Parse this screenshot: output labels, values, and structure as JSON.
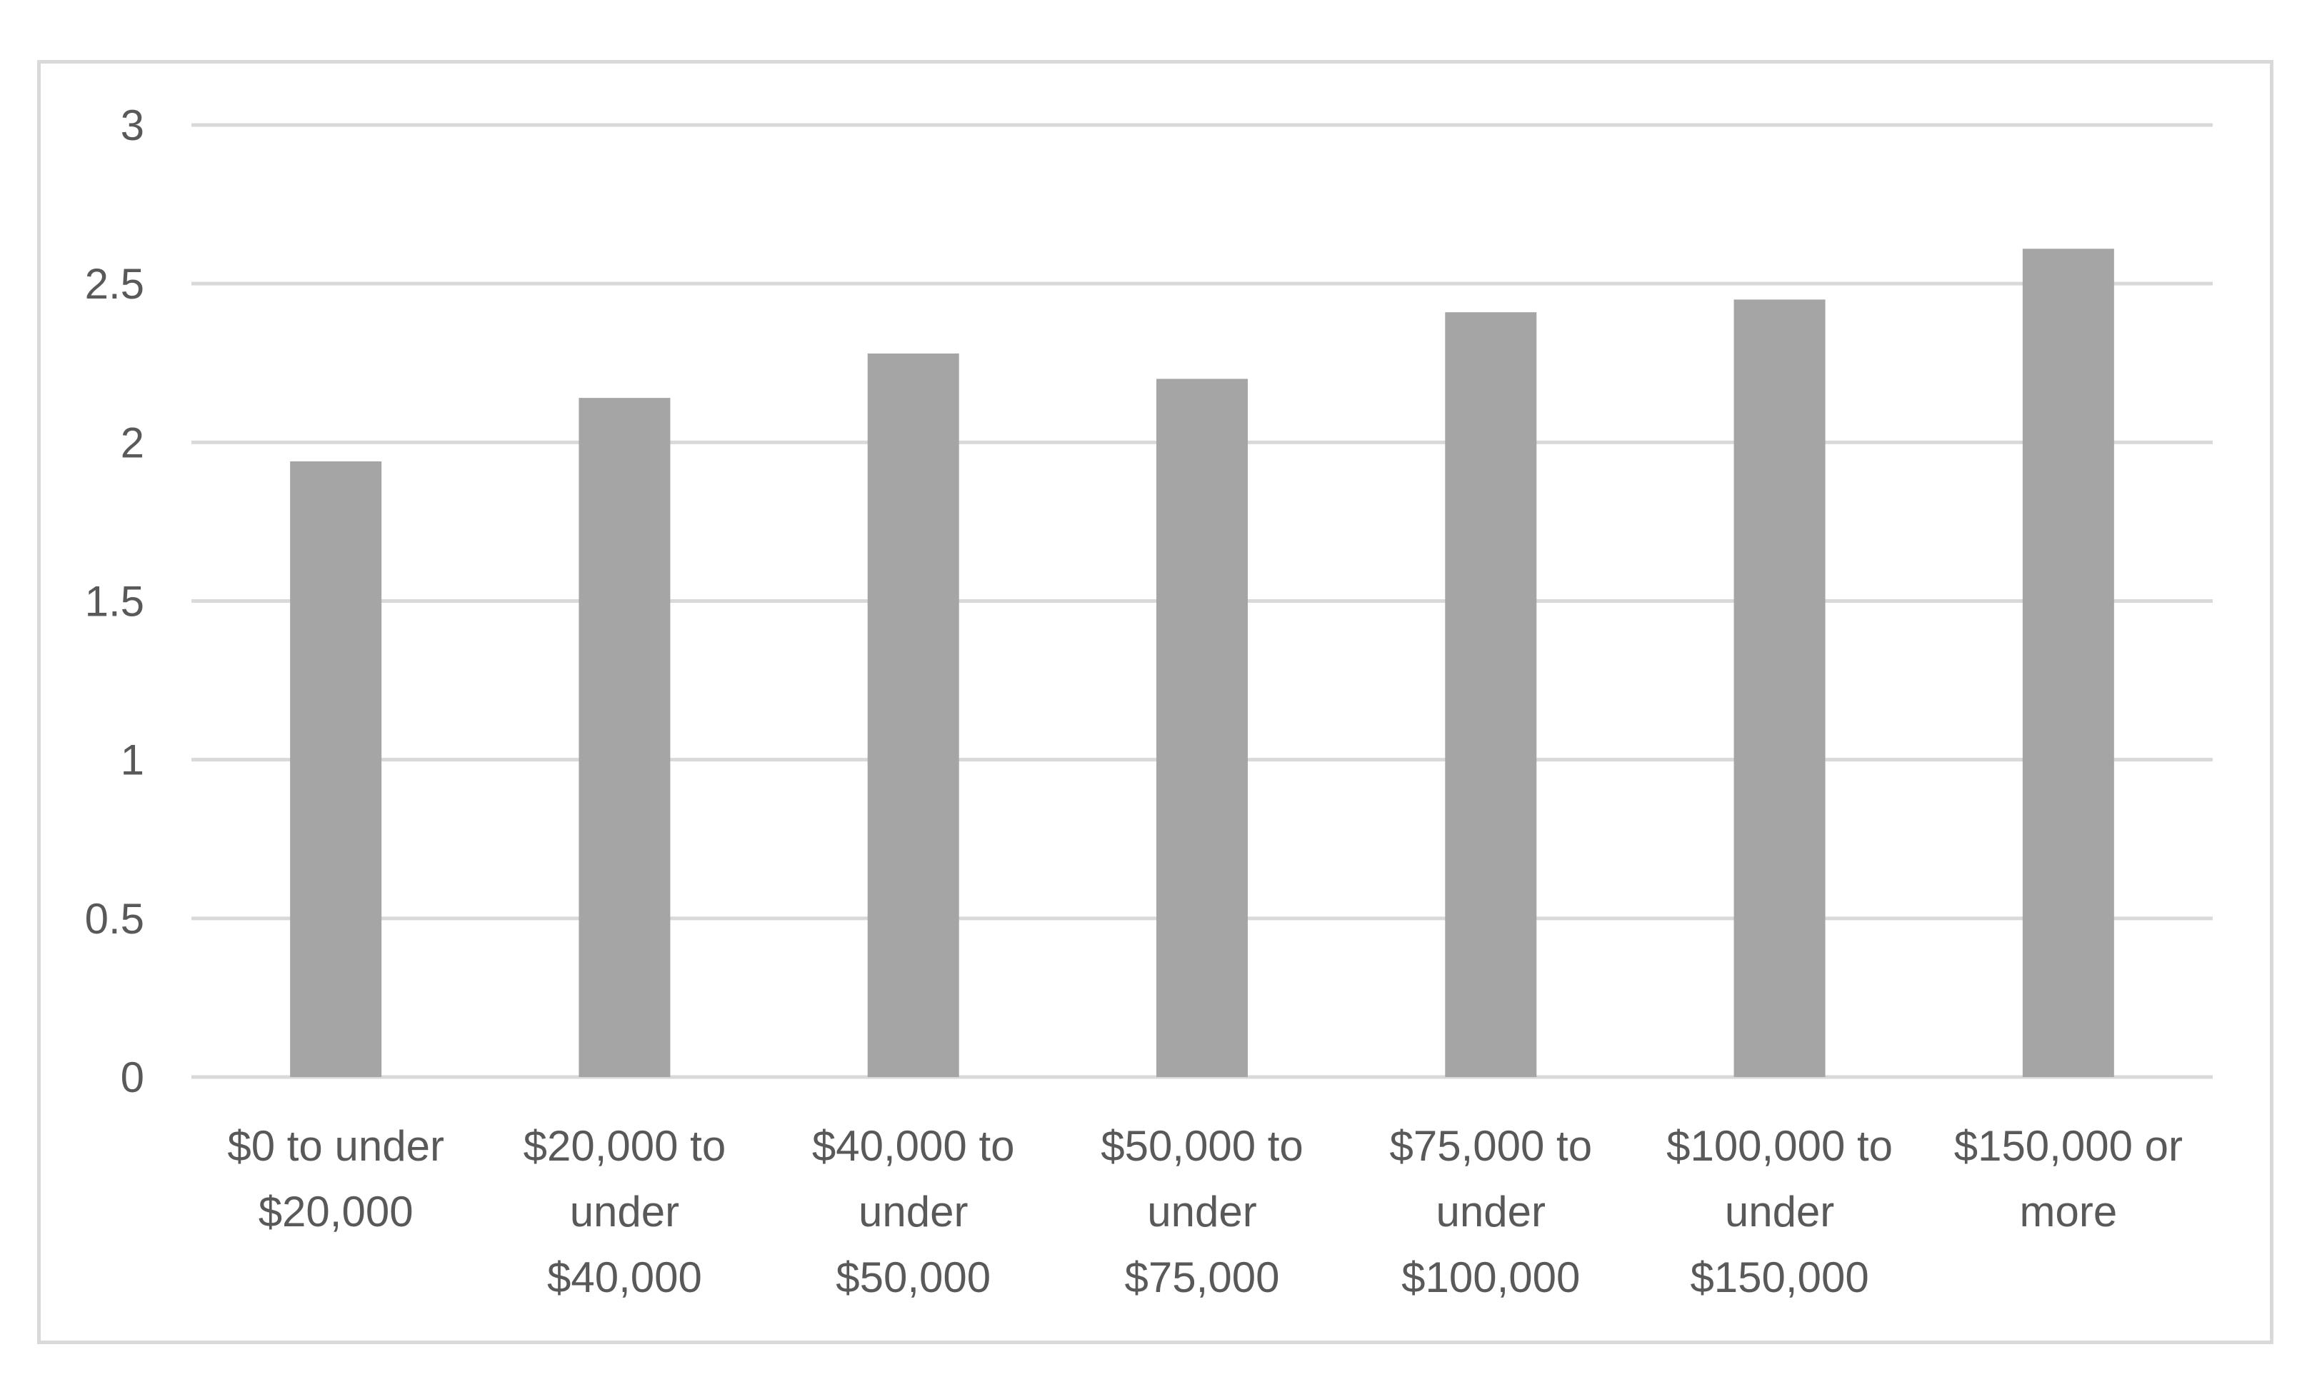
{
  "chart_data": {
    "type": "bar",
    "categories": [
      [
        "$0 to under",
        "$20,000"
      ],
      [
        "$20,000 to",
        "under",
        "$40,000"
      ],
      [
        "$40,000 to",
        "under",
        "$50,000"
      ],
      [
        "$50,000 to",
        "under",
        "$75,000"
      ],
      [
        "$75,000 to",
        "under",
        "$100,000"
      ],
      [
        "$100,000 to",
        "under",
        "$150,000"
      ],
      [
        "$150,000 or",
        "more"
      ]
    ],
    "values": [
      1.94,
      2.14,
      2.28,
      2.2,
      2.41,
      2.45,
      2.61
    ],
    "ylim": [
      0,
      3
    ],
    "yticks": [
      "0",
      "0.5",
      "1",
      "1.5",
      "2",
      "2.5",
      "3"
    ],
    "grid": true,
    "legend": "none",
    "colors": {
      "bar": "#a5a5a5",
      "grid": "#d9d9d9",
      "text": "#595959"
    }
  }
}
